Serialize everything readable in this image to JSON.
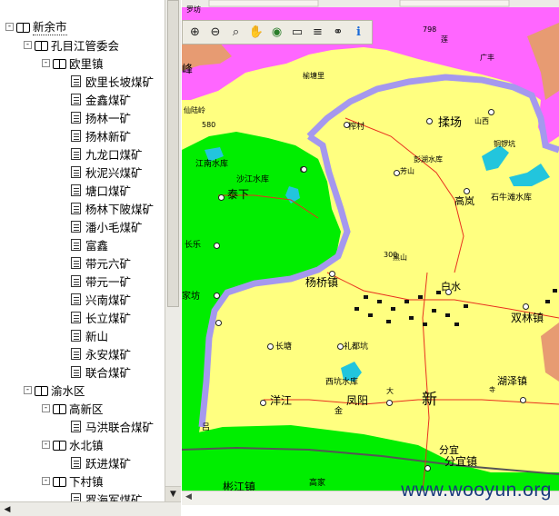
{
  "tree": {
    "nodes": [
      {
        "label": "新余市",
        "level": 0,
        "expander": "-",
        "icon": "book-icon",
        "selected": true
      },
      {
        "label": "孔目江管委会",
        "level": 1,
        "expander": "-",
        "icon": "book-icon"
      },
      {
        "label": "欧里镇",
        "level": 2,
        "expander": "-",
        "icon": "book-icon"
      },
      {
        "label": "欧里长坡煤矿",
        "level": 3,
        "icon": "doc-icon"
      },
      {
        "label": "金鑫煤矿",
        "level": 3,
        "icon": "doc-icon"
      },
      {
        "label": "扬林一矿",
        "level": 3,
        "icon": "doc-icon"
      },
      {
        "label": "扬林新矿",
        "level": 3,
        "icon": "doc-icon"
      },
      {
        "label": "九龙口煤矿",
        "level": 3,
        "icon": "doc-icon"
      },
      {
        "label": "秋泥兴煤矿",
        "level": 3,
        "icon": "doc-icon"
      },
      {
        "label": "塘口煤矿",
        "level": 3,
        "icon": "doc-icon"
      },
      {
        "label": "杨林下陂煤矿",
        "level": 3,
        "icon": "doc-icon"
      },
      {
        "label": "潘小毛煤矿",
        "level": 3,
        "icon": "doc-icon"
      },
      {
        "label": "富鑫",
        "level": 3,
        "icon": "doc-icon"
      },
      {
        "label": "带元六矿",
        "level": 3,
        "icon": "doc-icon"
      },
      {
        "label": "带元一矿",
        "level": 3,
        "icon": "doc-icon"
      },
      {
        "label": "兴南煤矿",
        "level": 3,
        "icon": "doc-icon"
      },
      {
        "label": "长立煤矿",
        "level": 3,
        "icon": "doc-icon"
      },
      {
        "label": "新山",
        "level": 3,
        "icon": "doc-icon"
      },
      {
        "label": "永安煤矿",
        "level": 3,
        "icon": "doc-icon"
      },
      {
        "label": "联合煤矿",
        "level": 3,
        "icon": "doc-icon"
      },
      {
        "label": "渝水区",
        "level": 1,
        "expander": "-",
        "icon": "book-icon"
      },
      {
        "label": "高新区",
        "level": 2,
        "expander": "-",
        "icon": "book-icon"
      },
      {
        "label": "马洪联合煤矿",
        "level": 3,
        "icon": "doc-icon"
      },
      {
        "label": "水北镇",
        "level": 2,
        "expander": "-",
        "icon": "book-icon"
      },
      {
        "label": "跃进煤矿",
        "level": 3,
        "icon": "doc-icon"
      },
      {
        "label": "下村镇",
        "level": 2,
        "expander": "-",
        "icon": "book-icon"
      },
      {
        "label": "罗海军煤矿",
        "level": 3,
        "icon": "doc-icon"
      }
    ]
  },
  "toolbar": {
    "tools": [
      {
        "name": "zoom-in-icon",
        "glyph": "⊕"
      },
      {
        "name": "zoom-out-icon",
        "glyph": "⊖"
      },
      {
        "name": "zoom-region-icon",
        "glyph": "⌕"
      },
      {
        "name": "pan-hand-icon",
        "glyph": "✋"
      },
      {
        "name": "globe-icon",
        "glyph": "◉"
      },
      {
        "name": "measure-icon",
        "glyph": "▭"
      },
      {
        "name": "layers-icon",
        "glyph": "≡"
      },
      {
        "name": "binoculars-icon",
        "glyph": "⚭"
      },
      {
        "name": "info-icon",
        "glyph": "i"
      }
    ]
  },
  "map": {
    "colors": {
      "county_yellow": "#ffff80",
      "green_zone": "#00ee00",
      "magenta_zone": "#ff66ff",
      "border_purple": "#a598ee",
      "water": "#22c5dd",
      "salmon": "#e79b72",
      "road_red": "#e8301e"
    },
    "labels": [
      {
        "text": "798"
      },
      {
        "text": "广丰"
      },
      {
        "text": "榆塘里"
      },
      {
        "text": "仙陆岭"
      },
      {
        "text": "580"
      },
      {
        "text": "揉场"
      },
      {
        "text": "山西"
      },
      {
        "text": "铜锣坑"
      },
      {
        "text": "彭湖水库"
      },
      {
        "text": "芳山"
      },
      {
        "text": "高岚"
      },
      {
        "text": "石牛滩水库"
      },
      {
        "text": "江南水库"
      },
      {
        "text": "沙江水库"
      },
      {
        "text": "泰下"
      },
      {
        "text": "长乐"
      },
      {
        "text": "300"
      },
      {
        "text": "家坊"
      },
      {
        "text": "杨桥镇"
      },
      {
        "text": "白水"
      },
      {
        "text": "双林镇"
      },
      {
        "text": "长塘"
      },
      {
        "text": "礼都坑"
      },
      {
        "text": "西坑水库"
      },
      {
        "text": "湖泽镇"
      },
      {
        "text": "洋江"
      },
      {
        "text": "凤阳"
      },
      {
        "text": "新"
      },
      {
        "text": "分宜"
      },
      {
        "text": "分宜镇"
      },
      {
        "text": "彬江镇"
      },
      {
        "text": "高家"
      },
      {
        "text": "罗坊"
      },
      {
        "text": "吕"
      },
      {
        "text": "大"
      },
      {
        "text": "金"
      },
      {
        "text": "峰"
      },
      {
        "text": "莲"
      },
      {
        "text": "榨村"
      },
      {
        "text": "寺"
      },
      {
        "text": "黑山"
      }
    ]
  },
  "watermark": "www.wooyun.org"
}
